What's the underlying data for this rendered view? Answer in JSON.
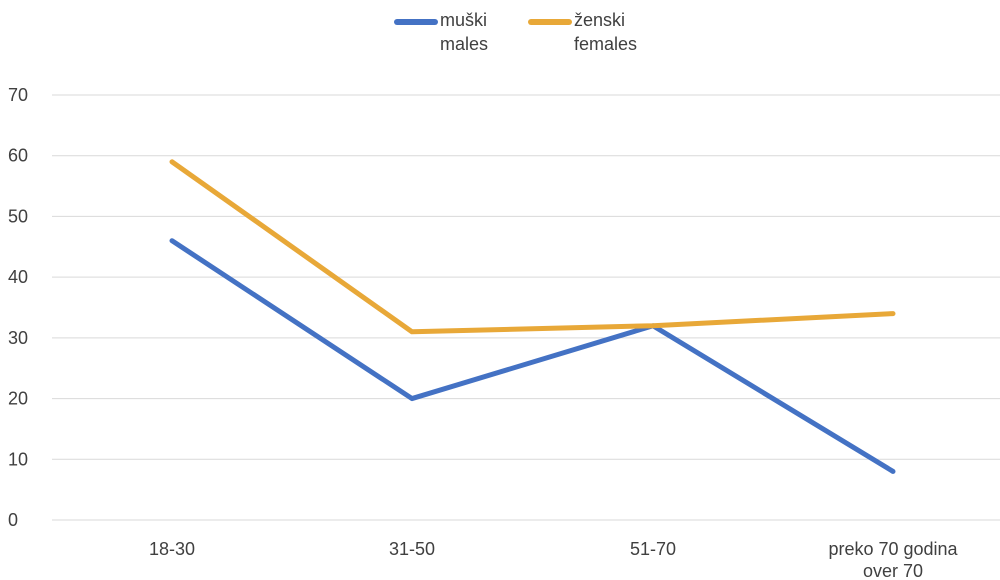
{
  "chart_data": {
    "type": "line",
    "categories": [
      [
        "18-30"
      ],
      [
        "31-50"
      ],
      [
        "51-70"
      ],
      [
        "preko 70 godina",
        "over 70"
      ]
    ],
    "series": [
      {
        "name": [
          "muški",
          "males"
        ],
        "color": "#4472C4",
        "values": [
          46,
          20,
          32,
          8
        ]
      },
      {
        "name": [
          "ženski",
          "females"
        ],
        "color": "#E8A838",
        "values": [
          59,
          31,
          32,
          34
        ]
      }
    ],
    "yticks": [
      "0",
      "10",
      "20",
      "30",
      "40",
      "50",
      "60",
      "70"
    ],
    "ylim": [
      0,
      70
    ],
    "grid": true,
    "legend_position": "top-center"
  }
}
